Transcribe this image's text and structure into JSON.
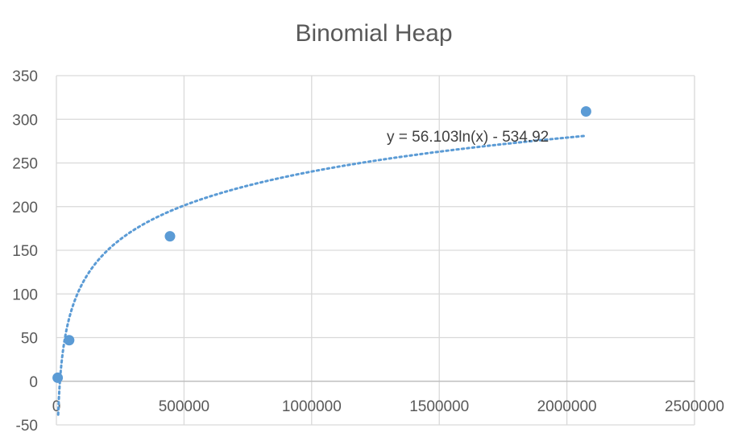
{
  "chart_data": {
    "type": "scatter",
    "title": "Binomial Heap",
    "xlabel": "",
    "ylabel": "",
    "xlim": [
      0,
      2500000
    ],
    "ylim": [
      -50,
      350
    ],
    "x_ticks": [
      0,
      500000,
      1000000,
      1500000,
      2000000,
      2500000
    ],
    "y_ticks": [
      -50,
      0,
      50,
      100,
      150,
      200,
      250,
      300,
      350
    ],
    "x_tick_labels": [
      "0",
      "500000",
      "1000000",
      "1500000",
      "2000000",
      "2500000"
    ],
    "y_tick_labels": [
      "-50",
      "0",
      "50",
      "100",
      "150",
      "200",
      "250",
      "300",
      "350"
    ],
    "grid": true,
    "legend": "none",
    "series": [
      {
        "color": "#5b9bd5",
        "points": [
          {
            "x": 5000,
            "y": 4
          },
          {
            "x": 50000,
            "y": 47
          },
          {
            "x": 445000,
            "y": 166
          },
          {
            "x": 2075000,
            "y": 309
          }
        ]
      }
    ],
    "trendline": {
      "type": "logarithmic",
      "a": 56.103,
      "b": -534.92,
      "x_range": [
        7000,
        2075000
      ],
      "label": "y = 56.103ln(x) - 534.92",
      "color": "#5b9bd5"
    }
  }
}
